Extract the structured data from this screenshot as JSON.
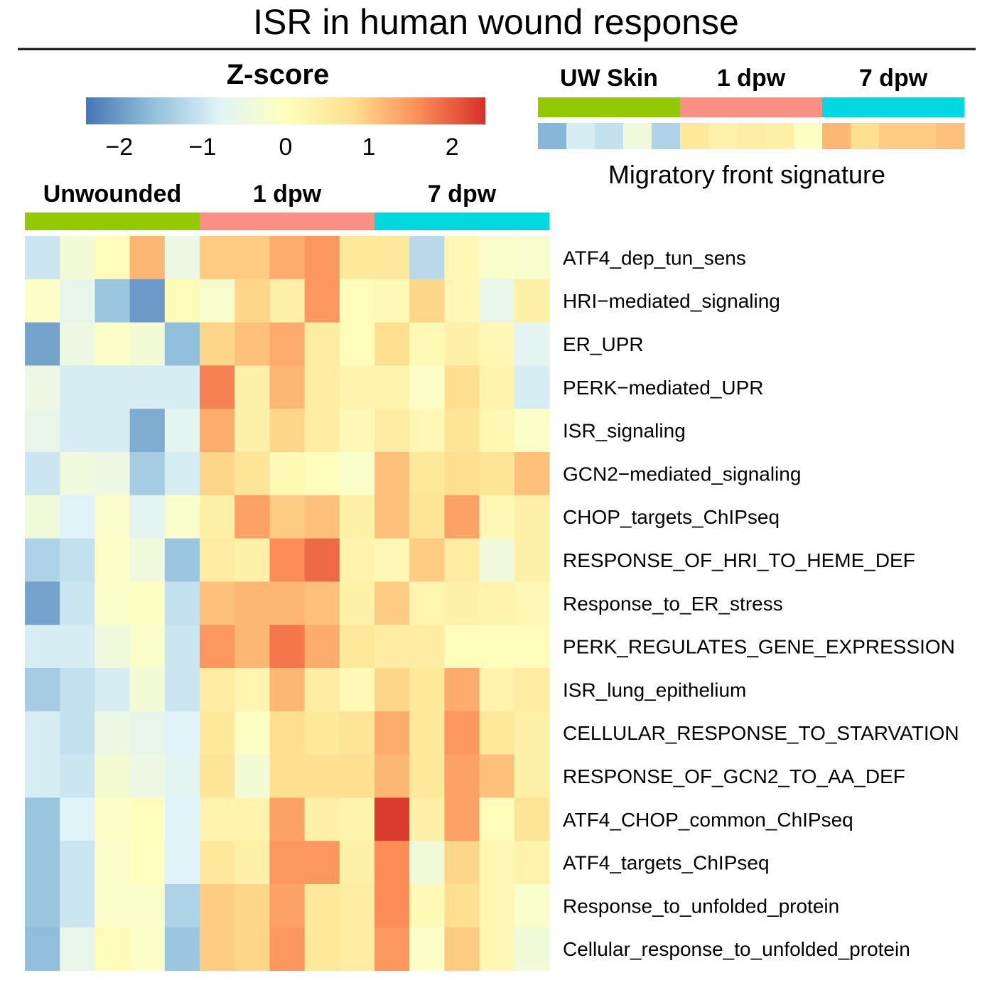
{
  "chart_data": {
    "type": "heatmap",
    "title": "ISR in human wound response",
    "colorbar": {
      "label": "Z-score",
      "range": [
        -2.4,
        2.4
      ],
      "ticks": [
        "−2",
        "−1",
        "0",
        "1",
        "2"
      ],
      "tick_values": [
        -2,
        -1,
        0,
        1,
        2
      ],
      "colors": [
        "#4575b4",
        "#91bfdb",
        "#e0f3f8",
        "#ffffbf",
        "#fee090",
        "#fc8d59",
        "#d73027"
      ]
    },
    "groups": [
      {
        "label": "Unwounded",
        "n": 5,
        "color": "#92c900"
      },
      {
        "label": "1 dpw",
        "n": 5,
        "color": "#fb8f83"
      },
      {
        "label": "7 dpw",
        "n": 5,
        "color": "#00d9e0"
      }
    ],
    "rows": [
      "ATF4_dep_tun_sens",
      "HRI−mediated_signaling",
      "ER_UPR",
      "PERK−mediated_UPR",
      "ISR_signaling",
      "GCN2−mediated_signaling",
      "CHOP_targets_ChIPseq",
      "RESPONSE_OF_HRI_TO_HEME_DEF",
      "Response_to_ER_stress",
      "PERK_REGULATES_GENE_EXPRESSION",
      "ISR_lung_epithelium",
      "CELLULAR_RESPONSE_TO_STARVATION",
      "RESPONSE_OF_GCN2_TO_AA_DEF",
      "ATF4_CHOP_common_ChIPseq",
      "ATF4_targets_ChIPseq",
      "Response_to_unfolded_protein",
      "Cellular_response_to_unfolded_protein"
    ],
    "values": [
      [
        -1.0,
        -0.3,
        0.1,
        1.2,
        -0.5,
        1.0,
        1.0,
        1.3,
        1.5,
        0.6,
        0.6,
        -1.2,
        0.2,
        -0.15,
        -0.2
      ],
      [
        -0.1,
        -0.6,
        -1.5,
        -2.0,
        0.1,
        -0.2,
        0.9,
        0.4,
        1.5,
        0.1,
        0.15,
        0.9,
        0.2,
        -0.6,
        0.4
      ],
      [
        -1.9,
        -0.5,
        -0.1,
        -0.3,
        -1.6,
        0.9,
        1.1,
        1.3,
        0.5,
        0.1,
        0.8,
        0.15,
        0.4,
        0.2,
        -0.7
      ],
      [
        -0.5,
        -0.9,
        -0.9,
        -0.9,
        -0.9,
        1.7,
        0.4,
        1.2,
        0.5,
        0.3,
        0.3,
        -0.1,
        0.8,
        0.3,
        -0.9
      ],
      [
        -0.6,
        -0.9,
        -0.9,
        -1.8,
        -0.7,
        1.3,
        0.4,
        0.9,
        0.5,
        0.2,
        0.5,
        0.2,
        0.7,
        0.2,
        -0.1
      ],
      [
        -1.0,
        -0.4,
        -0.5,
        -1.4,
        -0.9,
        0.9,
        0.7,
        0.15,
        0.05,
        -0.15,
        1.1,
        0.6,
        0.8,
        0.7,
        1.1
      ],
      [
        -0.35,
        -0.8,
        -0.15,
        -0.7,
        -0.15,
        0.4,
        1.4,
        1.0,
        1.1,
        0.4,
        1.1,
        0.7,
        1.4,
        0.2,
        0.4
      ],
      [
        -1.3,
        -1.1,
        -0.1,
        -0.4,
        -1.5,
        0.5,
        0.4,
        1.6,
        1.9,
        0.3,
        0.2,
        1.0,
        0.5,
        -0.4,
        0.4
      ],
      [
        -1.9,
        -1.0,
        -0.15,
        -0.05,
        -1.1,
        1.1,
        1.2,
        1.2,
        1.1,
        0.4,
        1.0,
        0.25,
        0.4,
        0.3,
        0.2
      ],
      [
        -0.9,
        -0.9,
        -0.4,
        -0.15,
        -1.0,
        1.5,
        1.2,
        1.8,
        1.3,
        0.6,
        0.5,
        0.5,
        0.05,
        0.05,
        0.05
      ],
      [
        -1.4,
        -1.1,
        -0.9,
        -0.3,
        -1.0,
        0.5,
        0.25,
        1.2,
        0.5,
        0.15,
        0.9,
        0.6,
        1.3,
        0.3,
        0.5
      ],
      [
        -0.9,
        -1.1,
        -0.5,
        -0.6,
        -0.8,
        0.6,
        -0.05,
        0.8,
        0.6,
        0.7,
        1.3,
        0.6,
        1.5,
        0.6,
        0.4
      ],
      [
        -0.9,
        -1.0,
        -0.25,
        -0.5,
        -0.7,
        0.7,
        -0.3,
        0.8,
        0.8,
        0.8,
        1.2,
        0.6,
        1.4,
        1.1,
        0.4
      ],
      [
        -1.5,
        -0.8,
        -0.1,
        0.05,
        -0.8,
        0.3,
        0.3,
        1.4,
        0.4,
        0.3,
        2.3,
        0.4,
        1.4,
        0.1,
        0.7
      ],
      [
        -1.5,
        -1.0,
        -0.15,
        0.0,
        -0.8,
        0.6,
        0.4,
        1.5,
        1.5,
        0.4,
        1.6,
        -0.35,
        0.9,
        0.2,
        0.3
      ],
      [
        -1.5,
        -1.0,
        -0.15,
        -0.15,
        -1.3,
        1.0,
        0.9,
        1.4,
        0.6,
        0.5,
        1.6,
        0.15,
        0.8,
        0.2,
        -0.15
      ],
      [
        -1.6,
        -0.6,
        0.1,
        -0.1,
        -1.5,
        1.0,
        0.9,
        1.5,
        0.6,
        0.5,
        1.5,
        -0.1,
        1.0,
        0.2,
        -0.35
      ]
    ],
    "signature": {
      "label": "Migratory front signature",
      "groups": [
        {
          "label": "UW Skin",
          "n": 5,
          "color": "#92c900"
        },
        {
          "label": "1 dpw",
          "n": 5,
          "color": "#fb8f83"
        },
        {
          "label": "7 dpw",
          "n": 5,
          "color": "#00d9e0"
        }
      ],
      "values": [
        -1.7,
        -0.9,
        -1.1,
        -0.4,
        -1.3,
        0.6,
        0.35,
        0.45,
        0.4,
        -0.05,
        1.2,
        0.8,
        1.0,
        1.0,
        1.1
      ]
    }
  }
}
